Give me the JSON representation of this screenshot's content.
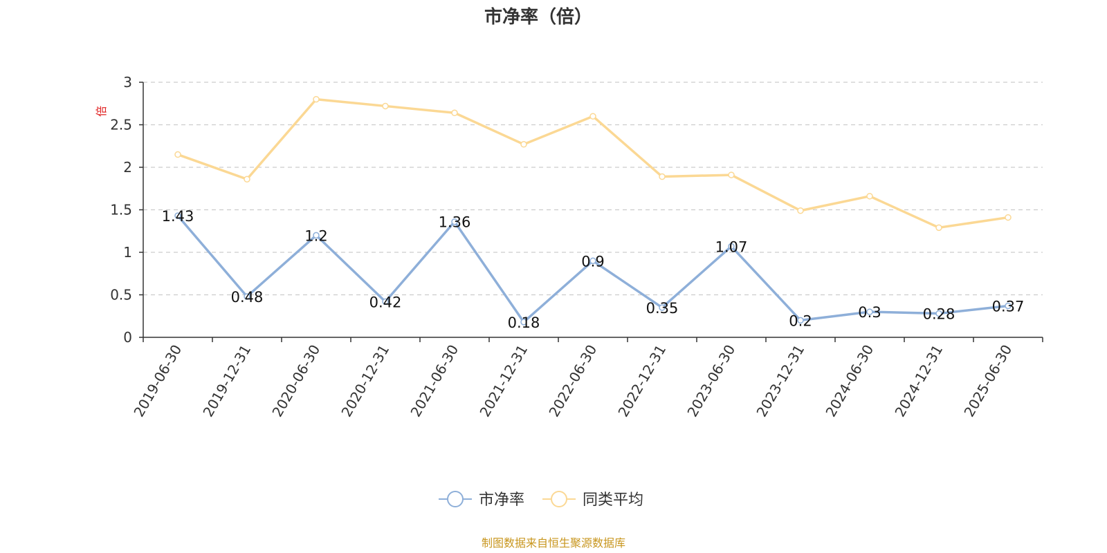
{
  "chart_data": {
    "type": "line",
    "title": "市净率（倍）",
    "ylabel": "倍",
    "xlabel": "",
    "categories": [
      "2019-06-30",
      "2019-12-31",
      "2020-06-30",
      "2020-12-31",
      "2021-06-30",
      "2021-12-31",
      "2022-06-30",
      "2022-12-31",
      "2023-06-30",
      "2023-12-31",
      "2024-06-30",
      "2024-12-31",
      "2025-06-30"
    ],
    "y_ticks": [
      "0",
      "0.5",
      "1",
      "1.5",
      "2",
      "2.5",
      "3"
    ],
    "ylim": [
      0,
      3
    ],
    "grid": true,
    "legend_position": "bottom",
    "series": [
      {
        "name": "市净率",
        "color": "#8eafd9",
        "values": [
          1.43,
          0.48,
          1.2,
          0.42,
          1.36,
          0.18,
          0.9,
          0.35,
          1.07,
          0.2,
          0.3,
          0.28,
          0.37
        ],
        "labels": [
          "1.43",
          "0.48",
          "1.2",
          "0.42",
          "1.36",
          "0.18",
          "0.9",
          "0.35",
          "1.07",
          "0.2",
          "0.3",
          "0.28",
          "0.37"
        ]
      },
      {
        "name": "同类平均",
        "color": "#fbd894",
        "values": [
          2.15,
          1.86,
          2.8,
          2.72,
          2.64,
          2.27,
          2.6,
          1.89,
          1.91,
          1.49,
          1.66,
          1.29,
          1.41
        ]
      }
    ],
    "source": "制图数据来自恒生聚源数据库"
  }
}
